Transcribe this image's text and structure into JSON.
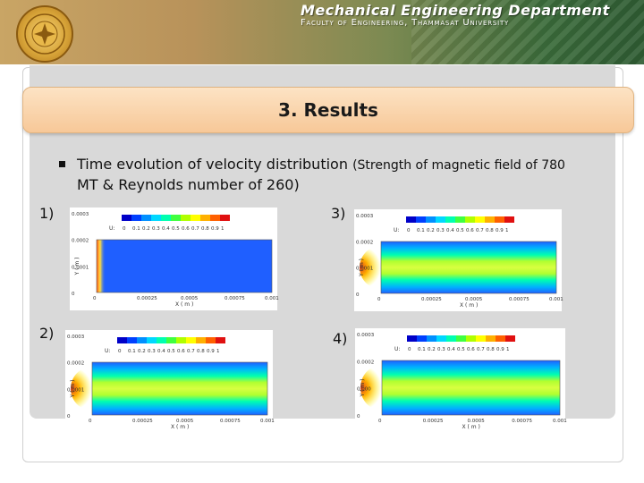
{
  "header": {
    "department": "Mechanical Engineering Department",
    "faculty": "Faculty of Engineering, Thammasat University"
  },
  "slide": {
    "title": "3. Results",
    "bullet_main": "Time evolution of velocity distribution",
    "bullet_paren": "(Strength of magnetic field of 780",
    "bullet_line2": "MT & Reynolds number of 260)"
  },
  "plots": [
    {
      "label": "1)",
      "legend_prefix": "U:",
      "x_axis": "X ( m )",
      "y_axis": "Y ( m )",
      "x_ticks": [
        "0",
        "0.00025",
        "0.0005",
        "0.00075",
        "0.001"
      ],
      "y_ticks": [
        "0.0003",
        "0.0002",
        "0.0001",
        "0"
      ]
    },
    {
      "label": "3)",
      "legend_prefix": "U:",
      "x_axis": "X ( m )",
      "y_axis": "Y ( m )",
      "x_ticks": [
        "0",
        "0.00025",
        "0.0005",
        "0.00075",
        "0.001"
      ],
      "y_ticks": [
        "0.0003",
        "0.0002",
        "0.0001",
        "0"
      ]
    },
    {
      "label": "2)",
      "legend_prefix": "U:",
      "x_axis": "X ( m )",
      "y_axis": "Y ( m )",
      "x_ticks": [
        "0",
        "0.00025",
        "0.0005",
        "0.00075",
        "0.001"
      ],
      "y_ticks": [
        "0.0003",
        "0.0002",
        "0.0001",
        "0"
      ]
    },
    {
      "label": "4)",
      "legend_prefix": "U:",
      "x_axis": "X ( m )",
      "y_axis": "Y ( m )",
      "x_ticks": [
        "0",
        "0.00025",
        "0.0005",
        "0.00075",
        "0.001"
      ],
      "y_ticks": [
        "0.0003",
        "0.0002",
        "0.000",
        "0"
      ]
    }
  ],
  "legend_values": [
    "0",
    "0.1",
    "0.2",
    "0.3",
    "0.4",
    "0.5",
    "0.6",
    "0.7",
    "0.8",
    "0.9",
    "1"
  ],
  "colors": {
    "title_bar": "#f7c898",
    "contour_blue": "#2060ff",
    "contour_red": "#e03a1a"
  }
}
